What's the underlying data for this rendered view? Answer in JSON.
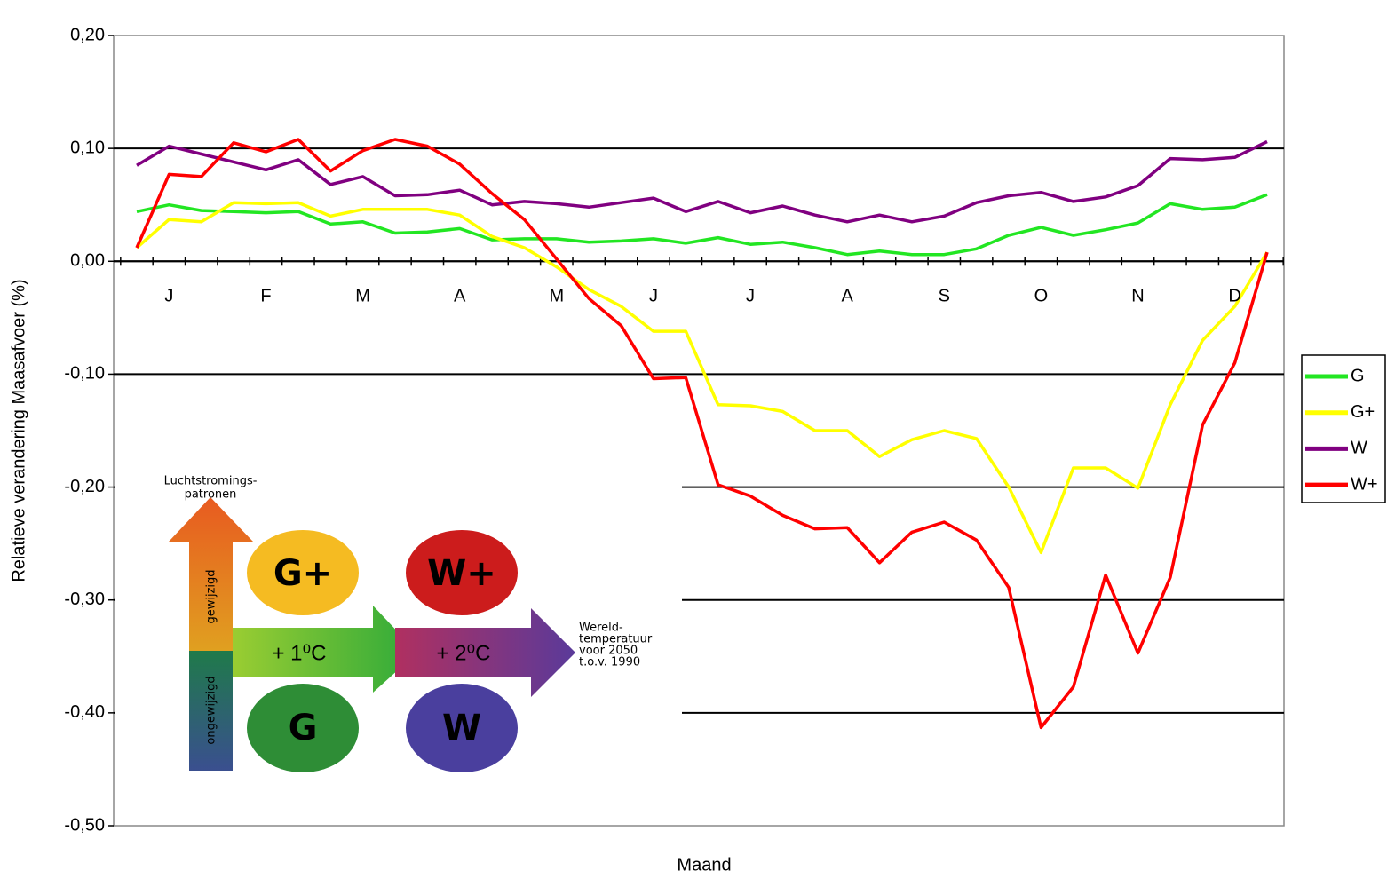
{
  "chart_data": {
    "type": "line",
    "y_label": "Relatieve verandering Maasafvoer (%)",
    "x_label": "Maand",
    "categories": [
      null,
      "J",
      null,
      null,
      "F",
      null,
      null,
      "M",
      null,
      null,
      "A",
      null,
      null,
      "M",
      null,
      null,
      "J",
      null,
      null,
      "J",
      null,
      null,
      "A",
      null,
      null,
      "S",
      null,
      null,
      "O",
      null,
      null,
      "N",
      null,
      null,
      "D",
      null
    ],
    "series": [
      {
        "name": "G",
        "color": "#22e622",
        "values": [
          0.044,
          0.05,
          0.045,
          0.044,
          0.043,
          0.044,
          0.033,
          0.035,
          0.025,
          0.026,
          0.029,
          0.019,
          0.02,
          0.02,
          0.017,
          0.018,
          0.02,
          0.016,
          0.021,
          0.015,
          0.017,
          0.012,
          0.006,
          0.009,
          0.006,
          0.006,
          0.011,
          0.023,
          0.03,
          0.023,
          0.028,
          0.034,
          0.051,
          0.046,
          0.048,
          0.059
        ]
      },
      {
        "name": "G+",
        "color": "#ffff00",
        "values": [
          0.012,
          0.037,
          0.035,
          0.052,
          0.051,
          0.052,
          0.04,
          0.046,
          0.046,
          0.046,
          0.041,
          0.022,
          0.012,
          -0.005,
          -0.025,
          -0.04,
          -0.062,
          -0.062,
          -0.127,
          -0.128,
          -0.133,
          -0.15,
          -0.15,
          -0.173,
          -0.158,
          -0.15,
          -0.157,
          -0.2,
          -0.258,
          -0.183,
          -0.183,
          -0.201,
          -0.127,
          -0.07,
          -0.04,
          0.008
        ]
      },
      {
        "name": "W",
        "color": "#800080",
        "values": [
          0.085,
          0.102,
          0.095,
          0.088,
          0.081,
          0.09,
          0.068,
          0.075,
          0.058,
          0.059,
          0.063,
          0.05,
          0.053,
          0.051,
          0.048,
          0.052,
          0.056,
          0.044,
          0.053,
          0.043,
          0.049,
          0.041,
          0.035,
          0.041,
          0.035,
          0.04,
          0.052,
          0.058,
          0.061,
          0.053,
          0.057,
          0.067,
          0.091,
          0.09,
          0.092,
          0.106
        ]
      },
      {
        "name": "W+",
        "color": "#ff0000",
        "values": [
          0.012,
          0.077,
          0.075,
          0.105,
          0.097,
          0.108,
          0.08,
          0.098,
          0.108,
          0.102,
          0.086,
          0.06,
          0.037,
          0.002,
          -0.033,
          -0.057,
          -0.104,
          -0.103,
          -0.198,
          -0.208,
          -0.225,
          -0.237,
          -0.236,
          -0.267,
          -0.24,
          -0.231,
          -0.247,
          -0.289,
          -0.413,
          -0.377,
          -0.278,
          -0.347,
          -0.28,
          -0.145,
          -0.09,
          0.008
        ]
      }
    ],
    "ylim": [
      -0.5,
      0.2
    ],
    "yticks": [
      {
        "value": -0.5,
        "label": "-0,50"
      },
      {
        "value": -0.4,
        "label": "-0,40"
      },
      {
        "value": -0.3,
        "label": "-0,30"
      },
      {
        "value": -0.2,
        "label": "-0,20"
      },
      {
        "value": -0.1,
        "label": "-0,10"
      },
      {
        "value": 0,
        "label": "0,00"
      },
      {
        "value": 0.1,
        "label": "0,10"
      },
      {
        "value": 0.2,
        "label": "0,20"
      }
    ],
    "grid": true,
    "legend": "right",
    "inset": {
      "vertical_title": [
        "Luchtstromings-",
        "patronen"
      ],
      "changed": "gewijzigd",
      "unchanged": "ongewijzigd",
      "scenarios": [
        "G+",
        "W+",
        "G",
        "W"
      ],
      "step1": "+ 1⁰C",
      "step2": "+ 2⁰C",
      "horizontal_title": [
        "Wereld-",
        "temperatuur",
        "voor 2050",
        "t.o.v. 1990"
      ]
    }
  }
}
